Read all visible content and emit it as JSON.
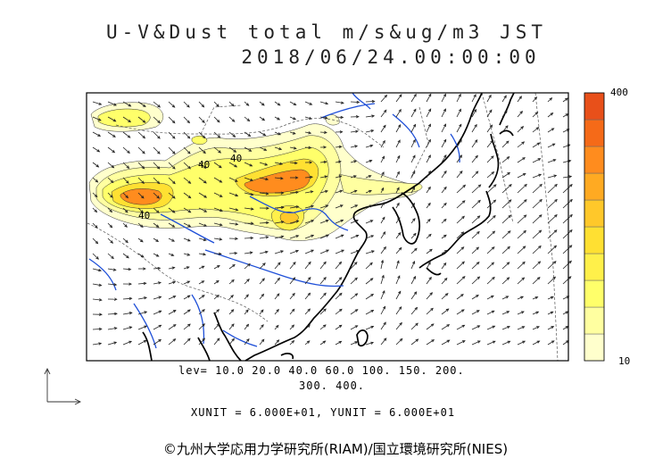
{
  "title": {
    "line1": "U-V&Dust total m/s&ug/m3 JST",
    "line2": "2018/06/24.00:00:00"
  },
  "levels_text": {
    "line1": "lev= 10.0 20.0 40.0 60.0 100. 150. 200.",
    "line2": "300. 400."
  },
  "unit_text": "XUNIT = 6.000E+01, YUNIT = 6.000E+01",
  "colorbar": {
    "max_label": "400",
    "min_label": "10",
    "levels": [
      10,
      20,
      40,
      60,
      100,
      150,
      200,
      300,
      400
    ],
    "colors": [
      "#ffffcc",
      "#ffffa0",
      "#ffff6a",
      "#fff04a",
      "#ffe032",
      "#ffc82a",
      "#ffaa22",
      "#ff8c1e",
      "#f56a18",
      "#e8501a"
    ]
  },
  "map_labels": [
    "40",
    "40",
    "40"
  ],
  "credit": "©九州大学応用力学研究所(RIAM)/国立環境研究所(NIES)",
  "colors": {
    "coast": "#000000",
    "rivers": "#1e4fd8",
    "dust_low": "#ffffb0",
    "dust_high": "#e8501a"
  }
}
